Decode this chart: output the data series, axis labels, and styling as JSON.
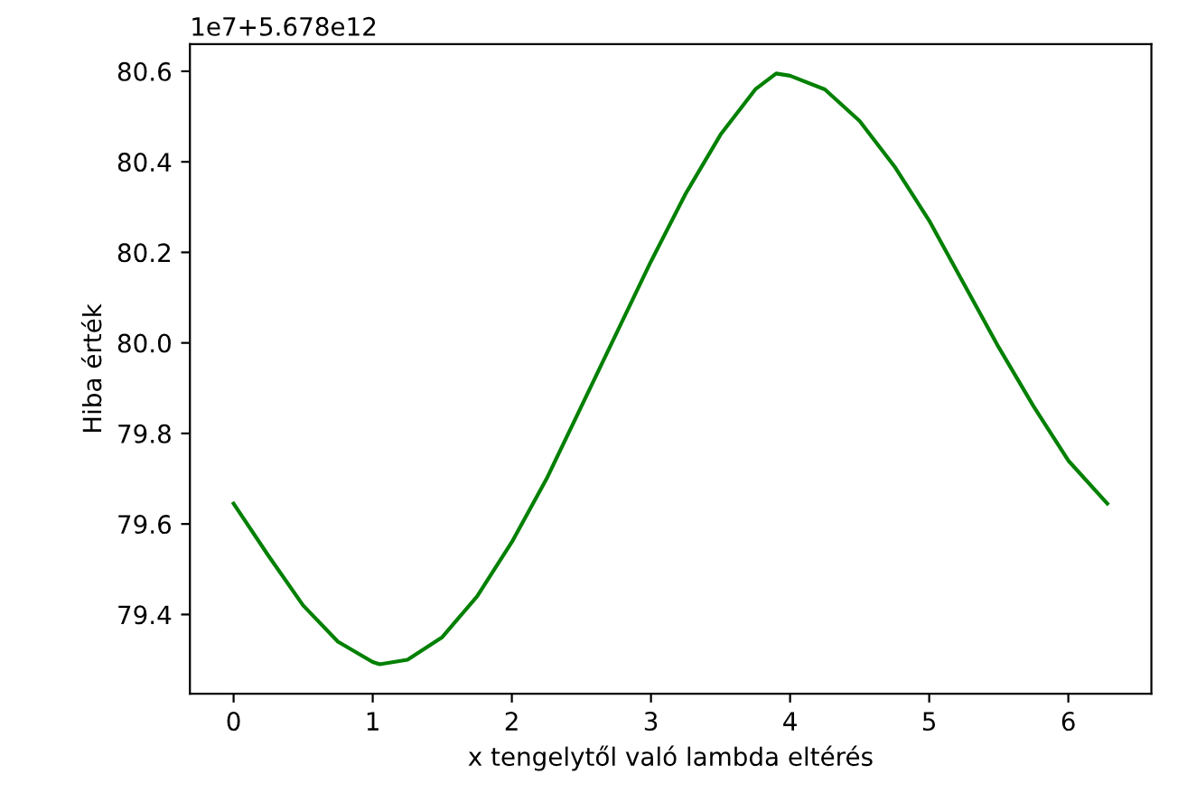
{
  "chart_data": {
    "type": "line",
    "xlabel": "x tengelytől való lambda eltérés",
    "ylabel": "Hiba érték",
    "annotations": [
      "1e7+5.678e12"
    ],
    "x": [
      0,
      0.25,
      0.5,
      0.75,
      1.0,
      1.05,
      1.25,
      1.5,
      1.75,
      2.0,
      2.25,
      2.5,
      2.75,
      3.0,
      3.25,
      3.5,
      3.75,
      3.9,
      4.0,
      4.25,
      4.5,
      4.75,
      5.0,
      5.25,
      5.5,
      5.75,
      6.0,
      6.28
    ],
    "series": [
      {
        "color": "#008000",
        "values": [
          79.645,
          79.53,
          79.42,
          79.34,
          79.295,
          79.29,
          79.3,
          79.35,
          79.44,
          79.56,
          79.7,
          79.86,
          80.02,
          80.18,
          80.33,
          80.46,
          80.56,
          80.595,
          80.59,
          80.56,
          80.49,
          80.39,
          80.27,
          80.13,
          79.99,
          79.86,
          79.74,
          79.645
        ]
      }
    ],
    "xlim": [
      -0.314,
      6.597
    ],
    "ylim": [
      79.225,
      80.66
    ],
    "xticks": [
      0,
      1,
      2,
      3,
      4,
      5,
      6
    ],
    "yticks": [
      79.4,
      79.6,
      79.8,
      {
        "value": 80.0,
        "label": "80.0"
      },
      80.2,
      80.4,
      80.6
    ],
    "grid": false,
    "legend": false,
    "marker": "none",
    "line_style": "solid"
  }
}
